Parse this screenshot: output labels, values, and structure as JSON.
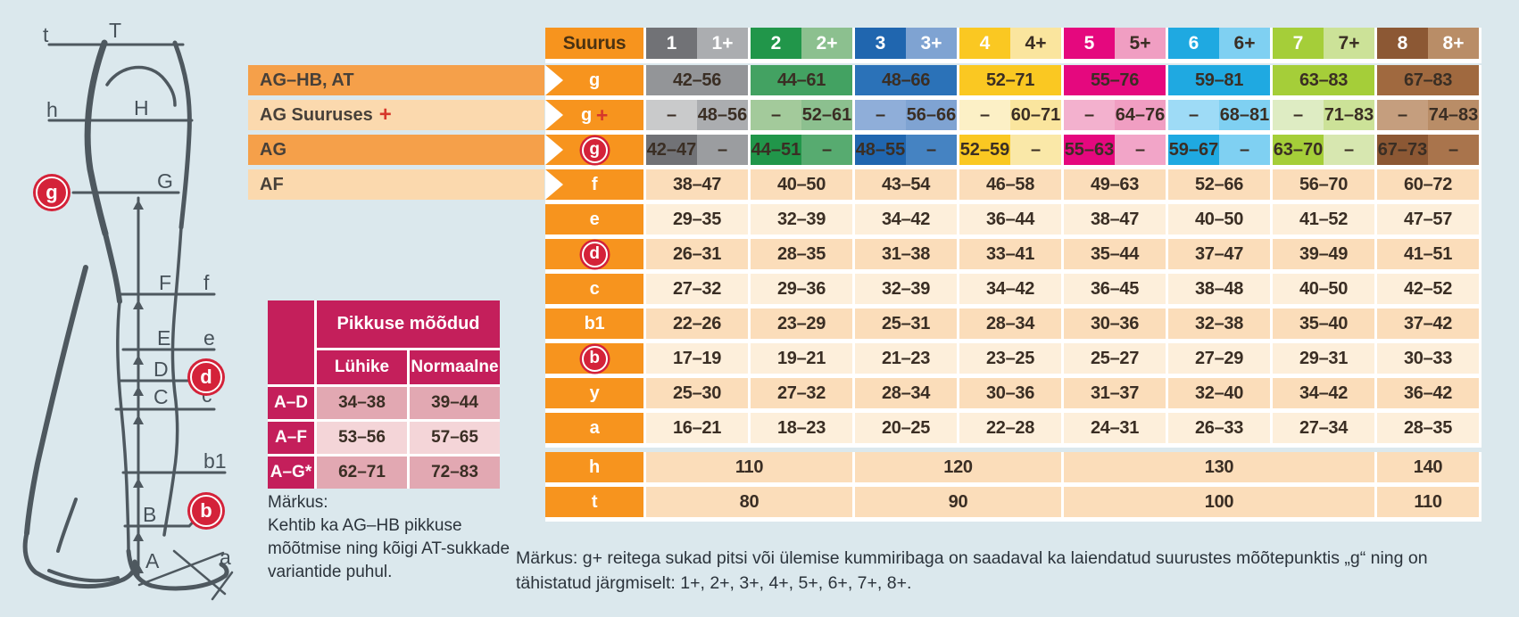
{
  "colors": {
    "canvas_bg": "#DBE8ED",
    "orange": "#F7941E",
    "band_dark": "#F5A04A",
    "band_light": "#FBD9AE",
    "peach": "#FBDDBA",
    "pale_peach": "#FDEFDB",
    "crimson": "#C41F5B",
    "rose_medium": "#E2A8B2",
    "rose_light": "#F4D5D8",
    "badge_red": "#D42239",
    "value_text": "#3A2E24",
    "note_text": "#2B333B",
    "diagram_stroke": "#4E585F"
  },
  "diagram": {
    "labels": {
      "t": "t",
      "T": "T",
      "h": "h",
      "H": "H",
      "G": "G",
      "F": "F",
      "f": "f",
      "E": "E",
      "e": "e",
      "D": "D",
      "C": "C",
      "c": "c",
      "b1": "b1",
      "B": "B",
      "A": "A",
      "a": "a"
    },
    "badges": {
      "g": "g",
      "d": "d",
      "b": "b"
    }
  },
  "bands": [
    {
      "label": "AG–HB, AT",
      "tone": "dark",
      "plus": false
    },
    {
      "label": "AG Suuruses",
      "tone": "light",
      "plus": true
    },
    {
      "label": "AG",
      "tone": "dark",
      "plus": false
    },
    {
      "label": "AF",
      "tone": "light",
      "plus": false
    }
  ],
  "length_table": {
    "title": "Pikkuse mõõdud",
    "col_headers": [
      "Lühike",
      "Normaalne"
    ],
    "rows": [
      {
        "label": "A–D",
        "values": [
          "34–38",
          "39–44"
        ]
      },
      {
        "label": "A–F",
        "values": [
          "53–56",
          "57–65"
        ]
      },
      {
        "label": "A–G*",
        "values": [
          "62–71",
          "72–83"
        ]
      }
    ]
  },
  "notes": {
    "left_title": "Märkus:",
    "left_lines": [
      "Kehtib ka AG–HB pikkuse",
      "mõõtmise ning kõigi AT-sukkade",
      "variantide puhul."
    ],
    "bottom": "Märkus: g+ reitega sukad pitsi või ülemise kummiribaga on saadaval ka laiendatud suurustes mõõtepunktis „g“ ning on tähistatud järgmiselt: 1+, 2+, 3+, 4+, 5+, 6+, 7+, 8+."
  },
  "table": {
    "header_label": "Suurus",
    "plus_sign": "+",
    "dash": "–",
    "sizes": [
      {
        "id": "1",
        "plus": "1+",
        "dark": "#717276",
        "light": "#ABADB0",
        "pale": "#C9CACB",
        "g_bg": "#939598",
        "gdash_bg": "#9B9DA0",
        "plus_text": "#FFFFFF",
        "g": "42–56",
        "gplus": "48–56",
        "gcirc": "42–47"
      },
      {
        "id": "2",
        "plus": "2+",
        "dark": "#21964A",
        "light": "#8CC08F",
        "pale": "#A3CA9B",
        "g_bg": "#43A262",
        "gdash_bg": "#57AB70",
        "plus_text": "#FFFFFF",
        "g": "44–61",
        "gplus": "52–61",
        "gcirc": "44–51"
      },
      {
        "id": "3",
        "plus": "3+",
        "dark": "#2066AF",
        "light": "#7FA3D2",
        "pale": "#8FAED9",
        "g_bg": "#2B72B8",
        "gdash_bg": "#4583C2",
        "plus_text": "#FFFFFF",
        "g": "48–66",
        "gplus": "56–66",
        "gcirc": "48–55"
      },
      {
        "id": "4",
        "plus": "4+",
        "dark": "#FAC822",
        "light": "#FAE59E",
        "pale": "#FCF0C6",
        "g_bg": "#FAC822",
        "gdash_bg": "#FAE8A8",
        "plus_text": "#3A2E24",
        "g": "52–71",
        "gplus": "60–71",
        "gcirc": "52–59"
      },
      {
        "id": "5",
        "plus": "5+",
        "dark": "#E5087E",
        "light": "#F09EC2",
        "pale": "#F3B1CE",
        "g_bg": "#E5087E",
        "gdash_bg": "#F2A5C8",
        "plus_text": "#3A2E24",
        "g": "55–76",
        "gplus": "64–76",
        "gcirc": "55–63"
      },
      {
        "id": "6",
        "plus": "6+",
        "dark": "#1FA9E1",
        "light": "#7FD0F2",
        "pale": "#9EDBF6",
        "g_bg": "#1FA9E1",
        "gdash_bg": "#7FD0F2",
        "plus_text": "#3A2E24",
        "g": "59–81",
        "gplus": "68–81",
        "gcirc": "59–67"
      },
      {
        "id": "7",
        "plus": "7+",
        "dark": "#A5CE39",
        "light": "#CCE298",
        "pale": "#DEECC3",
        "g_bg": "#A5CE39",
        "gdash_bg": "#D7E7B0",
        "plus_text": "#3A2E24",
        "g": "63–83",
        "gplus": "71–83",
        "gcirc": "63–70"
      },
      {
        "id": "8",
        "plus": "8+",
        "dark": "#8C5834",
        "light": "#B98D67",
        "pale": "#C59E7E",
        "g_bg": "#A0693F",
        "gdash_bg": "#A9744C",
        "plus_text": "#FFFFFF",
        "g": "67–83",
        "gplus": "74–83",
        "gcirc": "67–73"
      }
    ],
    "special_rows": [
      {
        "kind": "g",
        "letter": "g",
        "chevron": true,
        "circled": false,
        "plus": false
      },
      {
        "kind": "gplus",
        "letter": "g",
        "chevron": true,
        "circled": false,
        "plus": true
      },
      {
        "kind": "gcirc",
        "letter": "g",
        "chevron": true,
        "circled": true,
        "plus": false
      }
    ],
    "measure_rows": [
      {
        "letter": "f",
        "chevron": true,
        "circled": false,
        "values": [
          "38–47",
          "40–50",
          "43–54",
          "46–58",
          "49–63",
          "52–66",
          "56–70",
          "60–72"
        ]
      },
      {
        "letter": "e",
        "chevron": false,
        "circled": false,
        "values": [
          "29–35",
          "32–39",
          "34–42",
          "36–44",
          "38–47",
          "40–50",
          "41–52",
          "47–57"
        ]
      },
      {
        "letter": "d",
        "chevron": false,
        "circled": true,
        "values": [
          "26–31",
          "28–35",
          "31–38",
          "33–41",
          "35–44",
          "37–47",
          "39–49",
          "41–51"
        ]
      },
      {
        "letter": "c",
        "chevron": false,
        "circled": false,
        "values": [
          "27–32",
          "29–36",
          "32–39",
          "34–42",
          "36–45",
          "38–48",
          "40–50",
          "42–52"
        ]
      },
      {
        "letter": "b1",
        "chevron": false,
        "circled": false,
        "values": [
          "22–26",
          "23–29",
          "25–31",
          "28–34",
          "30–36",
          "32–38",
          "35–40",
          "37–42"
        ]
      },
      {
        "letter": "b",
        "chevron": false,
        "circled": true,
        "values": [
          "17–19",
          "19–21",
          "21–23",
          "23–25",
          "25–27",
          "27–29",
          "29–31",
          "30–33"
        ]
      },
      {
        "letter": "y",
        "chevron": false,
        "circled": false,
        "values": [
          "25–30",
          "27–32",
          "28–34",
          "30–36",
          "31–37",
          "32–40",
          "34–42",
          "36–42"
        ]
      },
      {
        "letter": "a",
        "chevron": false,
        "circled": false,
        "values": [
          "16–21",
          "18–23",
          "20–25",
          "22–28",
          "24–31",
          "26–33",
          "27–34",
          "28–35"
        ]
      }
    ],
    "span_rows": [
      {
        "letter": "h",
        "cells": [
          {
            "value": "110",
            "span": 2
          },
          {
            "value": "120",
            "span": 2
          },
          {
            "value": "130",
            "span": 3
          },
          {
            "value": "140",
            "span": 1
          }
        ]
      },
      {
        "letter": "t",
        "cells": [
          {
            "value": "80",
            "span": 2
          },
          {
            "value": "90",
            "span": 2
          },
          {
            "value": "100",
            "span": 3
          },
          {
            "value": "110",
            "span": 1
          }
        ]
      }
    ]
  }
}
